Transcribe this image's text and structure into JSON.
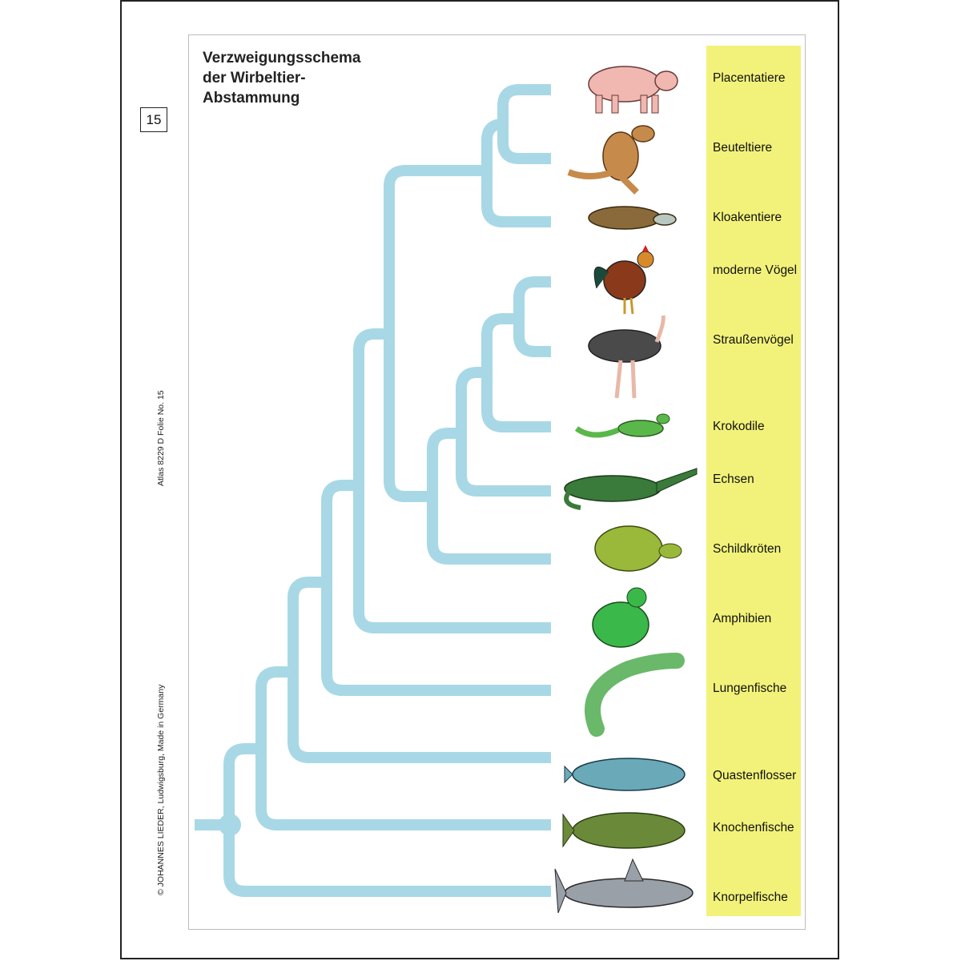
{
  "title": [
    "Verzweigungsschema",
    "der Wirbeltier-",
    "Abstammung"
  ],
  "folio_number": "15",
  "vertical_texts": {
    "copyright": "© JOHANNES LIEDER, Ludwigsburg, Made in Germany",
    "atlas": "Atlas  8229  D     Folie No. 15"
  },
  "colors": {
    "branch": "#a8d8e6",
    "label_bar": "#f2f27a"
  },
  "taxa": [
    {
      "label": "Placentatiere",
      "icon": "pig-icon"
    },
    {
      "label": "Beuteltiere",
      "icon": "kangaroo-icon"
    },
    {
      "label": "Kloakentiere",
      "icon": "platypus-icon"
    },
    {
      "label": "moderne Vögel",
      "icon": "rooster-icon"
    },
    {
      "label": "Straußenvögel",
      "icon": "ostrich-icon"
    },
    {
      "label": "Krokodile",
      "icon": "lizard-icon"
    },
    {
      "label": "Echsen",
      "icon": "crocodile-icon"
    },
    {
      "label": "Schildkröten",
      "icon": "turtle-icon"
    },
    {
      "label": "Amphibien",
      "icon": "frog-icon"
    },
    {
      "label": "Lungenfische",
      "icon": "lungfish-icon"
    },
    {
      "label": "Quastenflosser",
      "icon": "coelacanth-icon"
    },
    {
      "label": "Knochenfische",
      "icon": "carp-icon"
    },
    {
      "label": "Knorpelfische",
      "icon": "shark-icon"
    }
  ]
}
